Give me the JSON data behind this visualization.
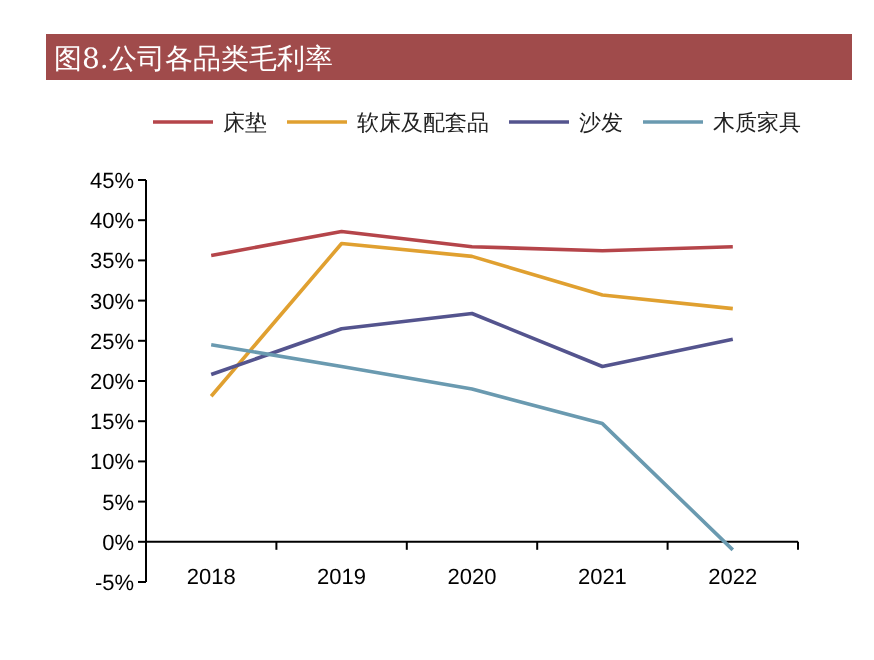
{
  "chart_data": {
    "type": "line",
    "title": "图8.公司各品类毛利率",
    "categories": [
      "2018",
      "2019",
      "2020",
      "2021",
      "2022"
    ],
    "series": [
      {
        "name": "床垫",
        "color": "#b5454a",
        "values": [
          35.6,
          38.6,
          36.7,
          36.2,
          36.7
        ]
      },
      {
        "name": "软床及配套品",
        "color": "#e0a030",
        "values": [
          18.1,
          37.1,
          35.5,
          30.7,
          29.0
        ]
      },
      {
        "name": "沙发",
        "color": "#54548e",
        "values": [
          20.8,
          26.5,
          28.4,
          21.8,
          25.2
        ]
      },
      {
        "name": "木质家具",
        "color": "#6a9ab0",
        "values": [
          24.5,
          21.8,
          19.0,
          14.7,
          -1.0
        ]
      }
    ],
    "ylim": [
      -5,
      45
    ],
    "yticks": [
      {
        "value": -5,
        "label": "-5%"
      },
      {
        "value": 0,
        "label": "0%"
      },
      {
        "value": 5,
        "label": "5%"
      },
      {
        "value": 10,
        "label": "10%"
      },
      {
        "value": 15,
        "label": "15%"
      },
      {
        "value": 20,
        "label": "20%"
      },
      {
        "value": 25,
        "label": "25%"
      },
      {
        "value": 30,
        "label": "30%"
      },
      {
        "value": 35,
        "label": "35%"
      },
      {
        "value": 40,
        "label": "40%"
      },
      {
        "value": 45,
        "label": "45%"
      }
    ],
    "grid": false,
    "legend": "top",
    "marker": "none",
    "line_style": "solid"
  }
}
